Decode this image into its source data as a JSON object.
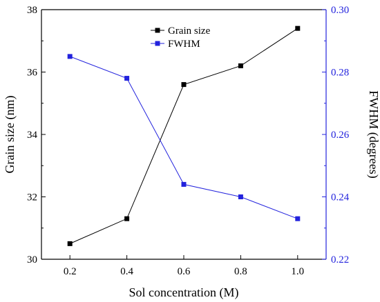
{
  "chart_data": {
    "type": "line",
    "x": [
      0.2,
      0.4,
      0.6,
      0.8,
      1.0
    ],
    "x_ticks": [
      "0.2",
      "0.4",
      "0.6",
      "0.8",
      "1.0"
    ],
    "xlim": [
      0.1,
      1.1
    ],
    "xlabel": "Sol concentration (M)",
    "ylabel_left": "Grain size (nm)",
    "ylim_left": [
      30,
      38
    ],
    "yticks_left": [
      "30",
      "32",
      "34",
      "36",
      "38"
    ],
    "ylabel_right": "FWHM (degrees)",
    "ylim_right": [
      0.22,
      0.3
    ],
    "yticks_right": [
      "0.22",
      "0.24",
      "0.26",
      "0.28",
      "0.30"
    ],
    "legend_position": "top-center",
    "series": [
      {
        "name": "Grain size",
        "axis": "left",
        "color": "#000000",
        "marker": "square",
        "values": [
          30.5,
          31.3,
          35.6,
          36.2,
          37.4
        ]
      },
      {
        "name": "FWHM",
        "axis": "right",
        "color": "#2222dd",
        "marker": "square",
        "values": [
          0.285,
          0.278,
          0.244,
          0.24,
          0.233
        ]
      }
    ]
  }
}
